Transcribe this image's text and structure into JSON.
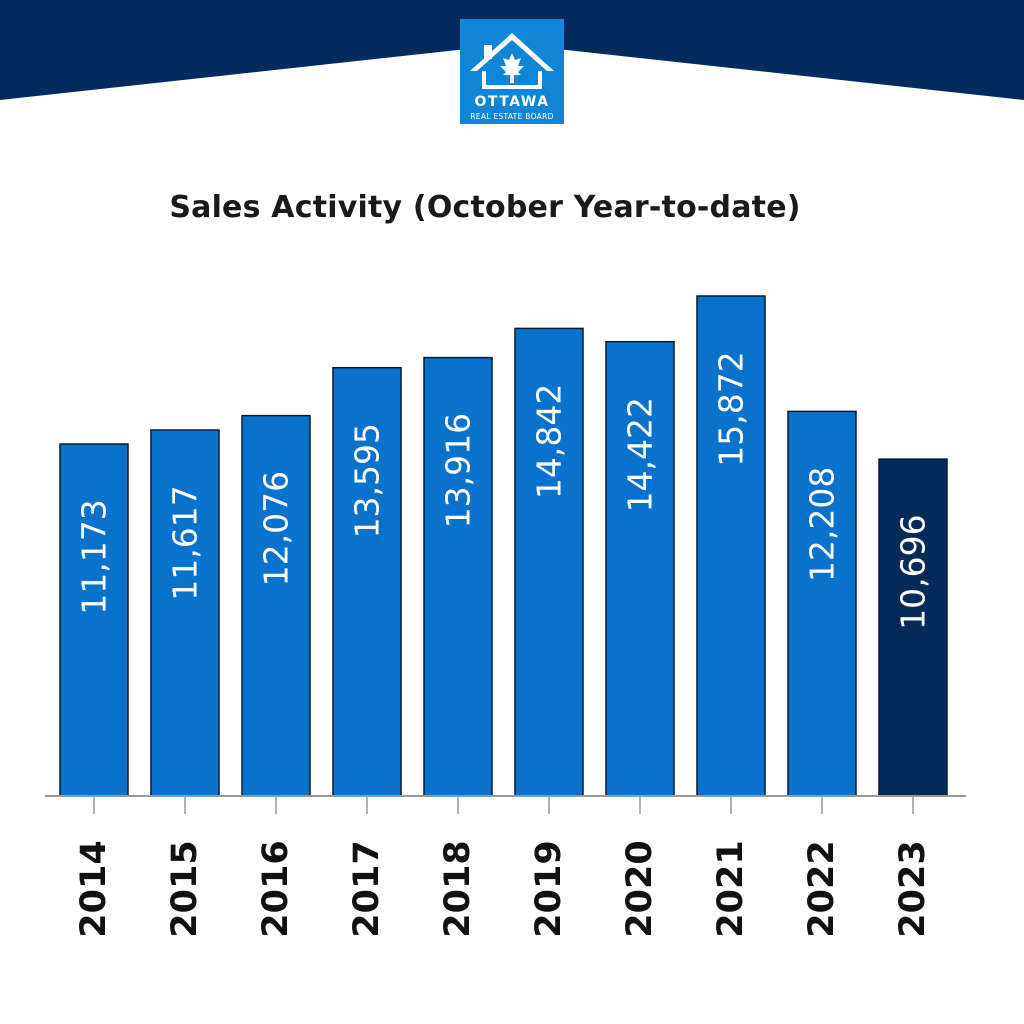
{
  "logo": {
    "name": "OTTAWA",
    "subtitle": "REAL ESTATE BOARD"
  },
  "colors": {
    "brand_navy": "#032b5e",
    "bar_blue": "#0872cc",
    "bar_highlight": "#062a5a",
    "axis": "#999999"
  },
  "chart_data": {
    "type": "bar",
    "title": "Sales Activity (October Year-to-date)",
    "xlabel": "",
    "ylabel": "",
    "categories": [
      "2014",
      "2015",
      "2016",
      "2017",
      "2018",
      "2019",
      "2020",
      "2021",
      "2022",
      "2023"
    ],
    "values": [
      11173,
      11617,
      12076,
      13595,
      13916,
      14842,
      14422,
      15872,
      12208,
      10696
    ],
    "value_labels": [
      "11,173",
      "11,617",
      "12,076",
      "13,595",
      "13,916",
      "14,842",
      "14,422",
      "15,872",
      "12,208",
      "10,696"
    ],
    "highlighted_category": "2023",
    "ylim": [
      0,
      16000
    ],
    "grid": false,
    "legend": "none"
  }
}
